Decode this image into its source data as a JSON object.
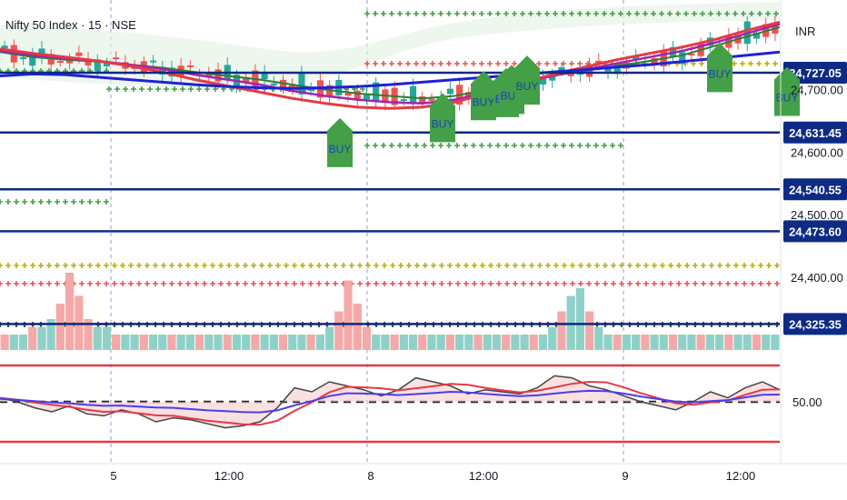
{
  "header": {
    "symbol_title": "Nifty 50 Index · 15 · NSE",
    "currency": "INR"
  },
  "colors": {
    "bull": "#26a69a",
    "bear": "#ef5350",
    "level": "#0d2a85",
    "buy_signal": "#43a047",
    "ma_fast": "#2e7d32",
    "ma_mid": "#9c27b0",
    "ma_slow": "#e53945",
    "ma_long": "#1f22d6",
    "rsi_band": "#e53945"
  },
  "chart_data": [
    {
      "type": "candlestick",
      "title": "Nifty 50 Index · 15 · NSE",
      "price_axis_ticks": [
        "24,700.00",
        "24,600.00",
        "24,500.00",
        "24,400.00"
      ],
      "time_axis_ticks": [
        "5",
        "12:00",
        "8",
        "12:00",
        "9",
        "12:00"
      ],
      "levels": [
        {
          "label": "24,727.05",
          "value": 24727.05
        },
        {
          "label": "24,631.45",
          "value": 24631.45
        },
        {
          "label": "24,540.55",
          "value": 24540.55
        },
        {
          "label": "24,473.60",
          "value": 24473.6
        },
        {
          "label": "24,325.35",
          "value": 24325.35
        }
      ],
      "series": [
        {
          "name": "",
          "values": [
            24760,
            24752,
            24748,
            24745,
            24740,
            24735,
            24728,
            24722,
            24716,
            24708,
            24700,
            24694,
            24690,
            24686,
            24690,
            24700,
            24712,
            24722,
            24730,
            24738,
            24746,
            24755,
            24770,
            24785,
            24800
          ]
        },
        {
          "name": "",
          "values": [
            24762,
            24755,
            24750,
            24746,
            24740,
            24733,
            24724,
            24716,
            24708,
            24698,
            24690,
            24684,
            24680,
            24678,
            24684,
            24696,
            24710,
            24722,
            24732,
            24742,
            24752,
            24762,
            24775,
            24790,
            24805
          ]
        },
        {
          "name": "",
          "values": [
            24765,
            24758,
            24752,
            24746,
            24738,
            24728,
            24716,
            24706,
            24696,
            24686,
            24678,
            24672,
            24670,
            24672,
            24680,
            24694,
            24710,
            24724,
            24736,
            24748,
            24758,
            24768,
            24780,
            24795,
            24808
          ]
        },
        {
          "name": "",
          "values": [
            24722,
            24725,
            24724,
            24720,
            24716,
            24712,
            24708,
            24705,
            24703,
            24702,
            24703,
            24705,
            24708,
            24712,
            24716,
            24720,
            24724,
            24728,
            24732,
            24736,
            24740,
            24745,
            24750,
            24755,
            24760
          ]
        }
      ],
      "signals": [
        {
          "label": "BUY",
          "price": 24640
        },
        {
          "label": "BUY",
          "price": 24680
        },
        {
          "label": "BUY",
          "price": 24715
        },
        {
          "label": "BUY",
          "price": 24720
        },
        {
          "label": "BUY",
          "price": 24725
        },
        {
          "label": "BUY",
          "price": 24740
        },
        {
          "label": "BUY",
          "price": 24760
        },
        {
          "label": "BUY",
          "price": 24722
        }
      ]
    },
    {
      "type": "bar",
      "title": "",
      "values": [
        2,
        2,
        2,
        3,
        3,
        4,
        6,
        10,
        7,
        4,
        3,
        3,
        2,
        2,
        2,
        2,
        2,
        2,
        2,
        2,
        2,
        2,
        2,
        2,
        2,
        2,
        2,
        2,
        2,
        2,
        2,
        2,
        2,
        2,
        2,
        3,
        5,
        9,
        6,
        3,
        2,
        2,
        2,
        2,
        2,
        2,
        2,
        2,
        2,
        2,
        2,
        2,
        2,
        2,
        2,
        2,
        2,
        2,
        2,
        3,
        5,
        7,
        8,
        5,
        3,
        2,
        2,
        2,
        2,
        2,
        2,
        2,
        2,
        2,
        2,
        2,
        2,
        2,
        2,
        2,
        2,
        2,
        2,
        2
      ]
    },
    {
      "type": "line",
      "title": "",
      "reference_labels": [
        "50.00"
      ],
      "series": [
        {
          "name": "",
          "values": [
            52,
            50,
            47,
            45,
            48,
            44,
            43,
            46,
            44,
            40,
            42,
            41,
            39,
            37,
            38,
            40,
            47,
            57,
            55,
            60,
            58,
            56,
            53,
            56,
            62,
            60,
            58,
            54,
            56,
            55,
            54,
            57,
            63,
            62,
            58,
            56,
            53,
            50,
            48,
            46,
            50,
            55,
            52,
            57,
            60,
            56
          ]
        }
      ]
    }
  ]
}
